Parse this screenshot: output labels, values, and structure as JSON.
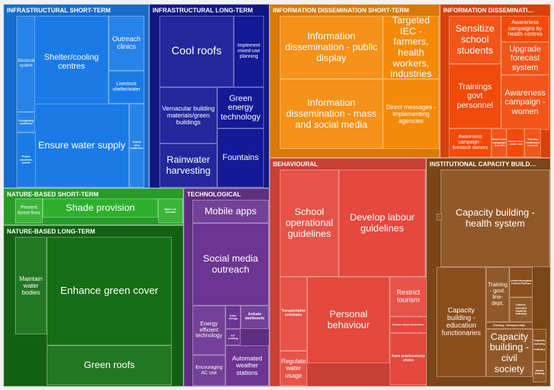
{
  "chart_data": {
    "type": "treemap",
    "groups": [
      {
        "name": "INFRASTRUCTURAL SHORT-TERM",
        "color": "#1a7be6",
        "cells": [
          {
            "label": "Electrical system"
          },
          {
            "label": "Shelter/cooling centres"
          },
          {
            "label": "Outreach clinics"
          },
          {
            "label": "Livestock shelter/water"
          },
          {
            "label": "Firefighting readiness"
          },
          {
            "label": "Ensure water supply"
          },
          {
            "label": "Health infra readiness"
          },
          {
            "label": "Repair tubewells, ponds"
          }
        ]
      },
      {
        "name": "INFRASTRUCTURAL LONG-TERM",
        "color": "#141a96",
        "cells": [
          {
            "label": "Cool roofs"
          },
          {
            "label": "Implement mixed-use planning"
          },
          {
            "label": "Vernacular building materials/green buildings"
          },
          {
            "label": "Green energy technology"
          },
          {
            "label": "Rainwater harvesting"
          },
          {
            "label": "Fountains"
          }
        ]
      },
      {
        "name": "INFORMATION DISSEMINATION SHORT-TERM",
        "color": "#f58a0a",
        "cells": [
          {
            "label": "Information dissemination - public display"
          },
          {
            "label": "Targeted IEC - farmers, health workers, industries"
          },
          {
            "label": "Information dissemination - mass and social media"
          },
          {
            "label": "Direct messages - implementing agencies"
          }
        ]
      },
      {
        "name": "INFORMATION DISSEMINATI…",
        "color": "#f24a0a",
        "cells": [
          {
            "label": "Sensitize school students"
          },
          {
            "label": "Awareness campaigns by health centres"
          },
          {
            "label": "Upgrade forecast system"
          },
          {
            "label": "Trainings govt personnel"
          },
          {
            "label": "Awareness campaign - women"
          },
          {
            "label": "Awareness campaign - livestock owners"
          },
          {
            "label": "Awareness campaign - tourists"
          },
          {
            "label": "Awareness - water use"
          },
          {
            "label": "Training healthcare workers"
          }
        ]
      },
      {
        "name": "NATURE-BASED SHORT-TERM",
        "color": "#2eb02e",
        "cells": [
          {
            "label": "Prevent forest fires"
          },
          {
            "label": "Shade provision"
          },
          {
            "label": "Water for animals"
          }
        ]
      },
      {
        "name": "NATURE-BASED LONG-TERM",
        "color": "#156e15",
        "cells": [
          {
            "label": "Maintain water bodies"
          },
          {
            "label": "Enhance green cover"
          },
          {
            "label": "Green roofs"
          }
        ]
      },
      {
        "name": "TECHNOLOGICAL",
        "color": "#6b3591",
        "cells": [
          {
            "label": "Mobile apps"
          },
          {
            "label": "Social media outreach"
          },
          {
            "label": "Energy efficient technology"
          },
          {
            "label": "Solar energy"
          },
          {
            "label": "Activate dashboards"
          },
          {
            "label": "IoT cooling"
          },
          {
            "label": "Encouraging AC use"
          },
          {
            "label": "Automated weather stations"
          }
        ]
      },
      {
        "name": "BEHAVIOURAL",
        "color": "#e5483d",
        "cells": [
          {
            "label": "School operational guidelines"
          },
          {
            "label": "Develop labour guidelines"
          },
          {
            "label": "Transportation schedules"
          },
          {
            "label": "Personal behaviour"
          },
          {
            "label": "Restrict tourism"
          },
          {
            "label": "Senior citizen behaviour"
          },
          {
            "label": "Regulate water usage"
          },
          {
            "label": "Farm practices/crop choice"
          }
        ]
      },
      {
        "name": "INSTITUTIONAL CAPACITY BUILD…",
        "color": "#8a4e1c",
        "cells": [
          {
            "label": "Capacity building - health system"
          },
          {
            "label": "Capacity building - education functionaries"
          },
          {
            "label": "Training - govt. line-dept."
          },
          {
            "label": "Create/strengthen Control Rooms"
          },
          {
            "label": "Labour-oriented capacity building"
          },
          {
            "label": "Training - transport dept."
          },
          {
            "label": "Capacity building - civil society"
          },
          {
            "label": "Capacity building - industry"
          },
          {
            "label": "Media training"
          },
          {
            "label": "·"
          }
        ]
      }
    ]
  }
}
